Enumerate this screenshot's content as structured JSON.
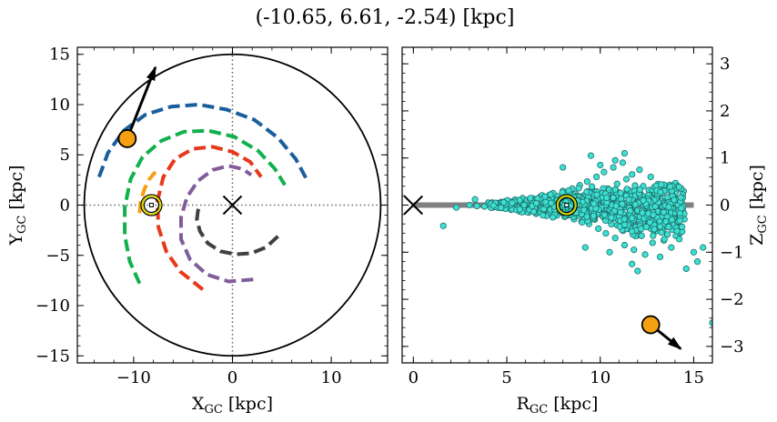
{
  "title": "(-10.65, 6.61, -2.54) [kpc]",
  "chart_data": [
    {
      "type": "scatter",
      "panel": "left",
      "xlabel": {
        "main": "X",
        "sub": "GC",
        "unit": " [kpc]"
      },
      "ylabel": {
        "main": "Y",
        "sub": "GC",
        "unit": " [kpc]"
      },
      "xlim": [
        -15.7,
        15.7
      ],
      "ylim": [
        -15.7,
        15.7
      ],
      "xticks": [
        -10,
        0,
        10
      ],
      "yticks": [
        -15,
        -10,
        -5,
        0,
        5,
        10,
        15
      ],
      "xtick_labels": [
        "−10",
        "0",
        "10"
      ],
      "ytick_labels": [
        "−15",
        "−10",
        "−5",
        "0",
        "5",
        "10",
        "15"
      ],
      "boundary_circle_radius": 15,
      "galactic_center": [
        0,
        0
      ],
      "sun": [
        -8.2,
        0
      ],
      "object": {
        "x": -10.65,
        "y": 6.61,
        "color": "#f5a013",
        "arrow_to": [
          -7.8,
          13.7
        ]
      },
      "spiral_arms": [
        {
          "color": "#1a5e9c",
          "points": [
            [
              -13.5,
              2.8
            ],
            [
              -12.6,
              5.2
            ],
            [
              -11.0,
              7.4
            ],
            [
              -8.8,
              9.0
            ],
            [
              -6.2,
              9.8
            ],
            [
              -3.4,
              10.0
            ],
            [
              -0.6,
              9.5
            ],
            [
              2.2,
              8.5
            ],
            [
              4.6,
              6.7
            ],
            [
              6.4,
              4.6
            ],
            [
              7.6,
              2.4
            ]
          ]
        },
        {
          "color": "#10b14d",
          "points": [
            [
              -9.4,
              -7.8
            ],
            [
              -10.4,
              -5.6
            ],
            [
              -10.9,
              -3.0
            ],
            [
              -10.9,
              -0.2
            ],
            [
              -10.3,
              2.6
            ],
            [
              -9.1,
              4.8
            ],
            [
              -7.2,
              6.4
            ],
            [
              -4.9,
              7.3
            ],
            [
              -2.4,
              7.4
            ],
            [
              0.2,
              6.8
            ],
            [
              2.6,
              5.4
            ],
            [
              4.3,
              3.6
            ],
            [
              5.3,
              2.0
            ]
          ]
        },
        {
          "color": "#e8381b",
          "points": [
            [
              -3.0,
              -8.4
            ],
            [
              -5.3,
              -6.6
            ],
            [
              -6.7,
              -4.6
            ],
            [
              -7.5,
              -2.2
            ],
            [
              -7.6,
              0.4
            ],
            [
              -7.0,
              2.8
            ],
            [
              -5.8,
              4.6
            ],
            [
              -4.0,
              5.6
            ],
            [
              -2.0,
              5.8
            ],
            [
              0.0,
              5.3
            ],
            [
              1.8,
              4.3
            ],
            [
              2.9,
              2.8
            ]
          ]
        },
        {
          "color": "#805d9b",
          "points": [
            [
              2.1,
              -7.4
            ],
            [
              -0.4,
              -7.6
            ],
            [
              -2.6,
              -6.9
            ],
            [
              -4.3,
              -5.4
            ],
            [
              -5.2,
              -3.4
            ],
            [
              -5.2,
              -1.2
            ],
            [
              -4.6,
              0.8
            ],
            [
              -3.5,
              2.4
            ],
            [
              -2.0,
              3.5
            ],
            [
              -0.4,
              3.9
            ],
            [
              1.0,
              3.6
            ],
            [
              1.9,
              3.0
            ]
          ]
        },
        {
          "color": "#404040",
          "points": [
            [
              4.6,
              -3.1
            ],
            [
              3.4,
              -4.2
            ],
            [
              1.9,
              -4.8
            ],
            [
              0.3,
              -4.9
            ],
            [
              -1.2,
              -4.6
            ],
            [
              -2.5,
              -3.8
            ],
            [
              -3.3,
              -2.6
            ],
            [
              -3.6,
              -1.4
            ],
            [
              -3.5,
              -0.6
            ],
            [
              -3.3,
              0.0
            ]
          ]
        },
        {
          "color": "#f5a013",
          "points": [
            [
              -9.4,
              -0.8
            ],
            [
              -9.3,
              0.4
            ],
            [
              -8.9,
              1.6
            ],
            [
              -8.4,
              2.6
            ],
            [
              -7.8,
              3.3
            ]
          ]
        }
      ]
    },
    {
      "type": "scatter",
      "panel": "right",
      "xlabel": {
        "main": "R",
        "sub": "GC",
        "unit": " [kpc]"
      },
      "ylabel": {
        "main": "Z",
        "sub": "GC",
        "unit": " [kpc]"
      },
      "xlim": [
        -0.6,
        16.0
      ],
      "ylim": [
        -3.35,
        3.35
      ],
      "xticks": [
        0,
        5,
        10,
        15
      ],
      "yticks": [
        -3,
        -2,
        -1,
        0,
        1,
        2,
        3
      ],
      "xtick_labels": [
        "0",
        "5",
        "10",
        "15"
      ],
      "ytick_labels": [
        "−3",
        "−2",
        "−1",
        "0",
        "1",
        "2",
        "3"
      ],
      "galactic_center": [
        0,
        0
      ],
      "sun": [
        8.2,
        0
      ],
      "disk_line": {
        "x": [
          0,
          15
        ],
        "y": 0,
        "color": "#808080"
      },
      "object": {
        "x": 12.7,
        "y": -2.54,
        "color": "#f5a013",
        "arrow_to": [
          14.3,
          -3.05
        ]
      },
      "points_color": "#3ce0d2",
      "points": [
        [
          1.6,
          -0.44
        ],
        [
          2.3,
          -0.05
        ],
        [
          3.0,
          0.0
        ],
        [
          3.3,
          0.12
        ],
        [
          3.4,
          -0.02
        ],
        [
          3.8,
          -0.03
        ],
        [
          4.0,
          0.05
        ],
        [
          4.3,
          -0.04
        ],
        [
          4.5,
          0.02
        ],
        [
          4.7,
          -0.06
        ],
        [
          4.9,
          0.04
        ],
        [
          5.0,
          -0.01
        ],
        [
          5.2,
          0.06
        ],
        [
          5.3,
          -0.08
        ],
        [
          5.4,
          0.03
        ],
        [
          5.6,
          0.1
        ],
        [
          5.7,
          -0.05
        ],
        [
          5.8,
          0.02
        ],
        [
          6.0,
          -0.12
        ],
        [
          6.1,
          0.08
        ],
        [
          6.2,
          0.0
        ],
        [
          6.3,
          -0.03
        ],
        [
          6.4,
          0.14
        ],
        [
          6.5,
          -0.1
        ],
        [
          6.6,
          0.05
        ],
        [
          6.7,
          -0.02
        ],
        [
          6.8,
          0.18
        ],
        [
          6.9,
          -0.15
        ],
        [
          7.0,
          0.06
        ],
        [
          7.1,
          0.0
        ],
        [
          7.2,
          -0.06
        ],
        [
          7.3,
          0.22
        ],
        [
          7.4,
          -0.2
        ],
        [
          7.5,
          0.1
        ],
        [
          7.6,
          -0.04
        ],
        [
          7.7,
          0.16
        ],
        [
          7.8,
          -0.12
        ],
        [
          7.9,
          0.04
        ],
        [
          8.0,
          0.3
        ],
        [
          8.1,
          -0.25
        ],
        [
          8.3,
          0.08
        ],
        [
          8.4,
          -0.08
        ],
        [
          8.5,
          0.35
        ],
        [
          8.6,
          -0.3
        ],
        [
          8.7,
          0.12
        ],
        [
          8.8,
          -0.02
        ],
        [
          8.9,
          0.42
        ],
        [
          9.0,
          -0.35
        ],
        [
          9.1,
          0.2
        ],
        [
          9.2,
          -0.15
        ],
        [
          9.3,
          0.5
        ],
        [
          9.4,
          -0.4
        ],
        [
          9.5,
          0.05
        ],
        [
          9.6,
          0.28
        ],
        [
          9.7,
          -0.22
        ],
        [
          9.8,
          0.6
        ],
        [
          9.9,
          -0.5
        ],
        [
          10.0,
          0.15
        ],
        [
          10.1,
          -0.1
        ],
        [
          10.2,
          0.7
        ],
        [
          10.3,
          -0.6
        ],
        [
          10.4,
          0.35
        ],
        [
          10.5,
          -0.3
        ],
        [
          10.6,
          0.08
        ],
        [
          10.7,
          0.8
        ],
        [
          10.8,
          -0.7
        ],
        [
          10.9,
          0.45
        ],
        [
          11.0,
          -0.4
        ],
        [
          11.1,
          0.2
        ],
        [
          11.2,
          0.9
        ],
        [
          11.3,
          -0.85
        ],
        [
          11.4,
          0.55
        ],
        [
          11.5,
          -0.5
        ],
        [
          11.6,
          0.1
        ],
        [
          11.7,
          0.65
        ],
        [
          11.8,
          -0.95
        ],
        [
          11.9,
          0.3
        ],
        [
          12.0,
          -0.2
        ],
        [
          12.1,
          0.75
        ],
        [
          12.2,
          -0.65
        ],
        [
          12.3,
          0.4
        ],
        [
          12.4,
          -1.05
        ],
        [
          12.5,
          0.15
        ],
        [
          12.6,
          -0.35
        ],
        [
          12.7,
          0.6
        ],
        [
          12.8,
          -0.8
        ],
        [
          12.9,
          0.25
        ],
        [
          13.0,
          -0.55
        ],
        [
          13.2,
          0.3
        ],
        [
          13.4,
          -0.75
        ],
        [
          13.6,
          0.1
        ],
        [
          13.8,
          -0.9
        ],
        [
          14.0,
          0.05
        ],
        [
          14.2,
          -0.6
        ],
        [
          14.5,
          -0.3
        ],
        [
          15.0,
          -1.0
        ],
        [
          15.5,
          -0.9
        ],
        [
          16.0,
          -2.5
        ],
        [
          9.5,
          1.05
        ],
        [
          10.0,
          0.85
        ],
        [
          11.3,
          1.1
        ],
        [
          8.0,
          0.8
        ],
        [
          10.5,
          -1.0
        ],
        [
          11.7,
          -1.25
        ],
        [
          13.2,
          -1.1
        ],
        [
          14.6,
          -1.35
        ],
        [
          15.2,
          -1.2
        ],
        [
          9.2,
          -0.9
        ],
        [
          12.0,
          -1.4
        ],
        [
          10.8,
          0.95
        ]
      ]
    }
  ]
}
